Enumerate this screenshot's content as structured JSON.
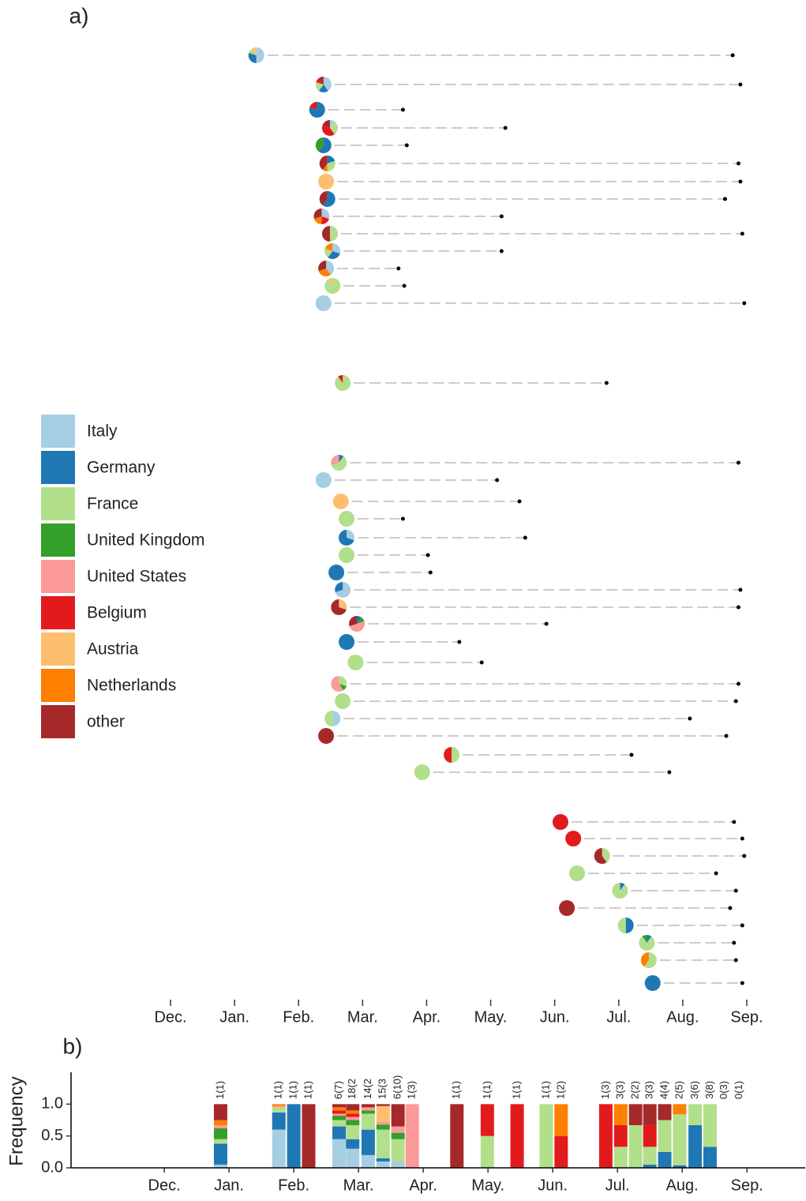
{
  "chart_data": [
    {
      "type": "phylogeny",
      "panel": "a)",
      "series": [
        {
          "name": "Italy",
          "color": "#a6cee3"
        },
        {
          "name": "Germany",
          "color": "#1f78b4"
        },
        {
          "name": "France",
          "color": "#b2df8a"
        },
        {
          "name": "United Kingdom",
          "color": "#33a02c"
        },
        {
          "name": "United States",
          "color": "#fb9a99"
        },
        {
          "name": "Belgium",
          "color": "#e31a1c"
        },
        {
          "name": "Austria",
          "color": "#fdbf6f"
        },
        {
          "name": "Netherlands",
          "color": "#ff7f00"
        },
        {
          "name": "other",
          "color": "#a6292a"
        }
      ],
      "xlim": [
        0,
        9
      ],
      "xticks": [
        {
          "value": 0,
          "label": "Dec."
        },
        {
          "value": 1,
          "label": "Jan."
        },
        {
          "value": 2,
          "label": "Feb."
        },
        {
          "value": 3,
          "label": "Mar."
        },
        {
          "value": 4,
          "label": "Apr."
        },
        {
          "value": 5,
          "label": "May."
        },
        {
          "value": 6,
          "label": "Jun."
        },
        {
          "value": 7,
          "label": "Jul."
        },
        {
          "value": 8,
          "label": "Aug."
        },
        {
          "value": 9,
          "label": "Sep."
        }
      ],
      "clusters": [
        {
          "start": 1.34,
          "end": 8.78,
          "pie": [
            0.5,
            0.3,
            0.1,
            0,
            0,
            0,
            0.1,
            0,
            0
          ]
        },
        {
          "start": 2.39,
          "end": 8.9,
          "pie": [
            0.4,
            0.2,
            0.2,
            0,
            0,
            0.1,
            0,
            0,
            0.1
          ]
        },
        {
          "start": 2.29,
          "end": 3.63,
          "pie": [
            0,
            0.8,
            0,
            0,
            0,
            0.1,
            0,
            0,
            0.1
          ]
        },
        {
          "start": 2.49,
          "end": 5.23,
          "pie": [
            0.1,
            0,
            0.3,
            0,
            0,
            0.4,
            0,
            0,
            0.2
          ]
        },
        {
          "start": 2.39,
          "end": 3.69,
          "pie": [
            0,
            0.6,
            0,
            0.4,
            0,
            0,
            0,
            0,
            0
          ]
        },
        {
          "start": 2.45,
          "end": 8.87,
          "pie": [
            0,
            0.2,
            0.3,
            0,
            0,
            0,
            0,
            0.1,
            0.4
          ]
        },
        {
          "start": 2.43,
          "end": 8.9,
          "pie": [
            0,
            0,
            0,
            0,
            0,
            0,
            1,
            0,
            0
          ]
        },
        {
          "start": 2.45,
          "end": 8.66,
          "pie": [
            0,
            0.6,
            0,
            0,
            0,
            0,
            0,
            0,
            0.4
          ]
        },
        {
          "start": 2.36,
          "end": 5.17,
          "pie": [
            0.3,
            0,
            0,
            0,
            0,
            0.2,
            0,
            0.2,
            0.3
          ]
        },
        {
          "start": 2.49,
          "end": 8.93,
          "pie": [
            0,
            0,
            0.5,
            0,
            0,
            0,
            0,
            0,
            0.5
          ]
        },
        {
          "start": 2.53,
          "end": 5.17,
          "pie": [
            0.3,
            0.3,
            0.2,
            0,
            0,
            0,
            0,
            0.2,
            0
          ]
        },
        {
          "start": 2.43,
          "end": 3.56,
          "pie": [
            0.4,
            0,
            0,
            0,
            0,
            0,
            0,
            0.3,
            0.3
          ]
        },
        {
          "start": 2.53,
          "end": 3.65,
          "pie": [
            0,
            0,
            0.9,
            0,
            0,
            0,
            0.1,
            0,
            0
          ]
        },
        {
          "start": 2.39,
          "end": 8.96,
          "pie": [
            1,
            0,
            0,
            0,
            0,
            0,
            0,
            0,
            0
          ]
        },
        {
          "start": 2.69,
          "end": 6.81,
          "pie": [
            0,
            0,
            0.9,
            0,
            0,
            0.1,
            0,
            0,
            0
          ]
        },
        {
          "start": 2.63,
          "end": 8.87,
          "pie": [
            0,
            0.1,
            0.6,
            0,
            0.3,
            0,
            0,
            0,
            0
          ]
        },
        {
          "start": 2.39,
          "end": 5.1,
          "pie": [
            1,
            0,
            0,
            0,
            0,
            0,
            0,
            0,
            0
          ]
        },
        {
          "start": 2.66,
          "end": 5.45,
          "pie": [
            0,
            0,
            0,
            0,
            0,
            0,
            1,
            0,
            0
          ]
        },
        {
          "start": 2.75,
          "end": 3.63,
          "pie": [
            0,
            0,
            1,
            0,
            0,
            0,
            0,
            0,
            0
          ]
        },
        {
          "start": 2.75,
          "end": 5.54,
          "pie": [
            0.3,
            0.7,
            0,
            0,
            0,
            0,
            0,
            0,
            0
          ]
        },
        {
          "start": 2.75,
          "end": 4.02,
          "pie": [
            0,
            0,
            1,
            0,
            0,
            0,
            0,
            0,
            0
          ]
        },
        {
          "start": 2.59,
          "end": 4.06,
          "pie": [
            0,
            1,
            0,
            0,
            0,
            0,
            0,
            0,
            0
          ]
        },
        {
          "start": 2.69,
          "end": 8.9,
          "pie": [
            0.7,
            0.3,
            0,
            0,
            0,
            0,
            0,
            0,
            0
          ]
        },
        {
          "start": 2.63,
          "end": 8.87,
          "pie": [
            0,
            0,
            0,
            0,
            0,
            0,
            0.3,
            0,
            0.7
          ]
        },
        {
          "start": 2.91,
          "end": 5.87,
          "pie": [
            0,
            0.1,
            0,
            0.1,
            0.5,
            0,
            0,
            0,
            0.3
          ]
        },
        {
          "start": 2.75,
          "end": 4.51,
          "pie": [
            0,
            1,
            0,
            0,
            0,
            0,
            0,
            0,
            0
          ]
        },
        {
          "start": 2.89,
          "end": 4.86,
          "pie": [
            0,
            0,
            1,
            0,
            0,
            0,
            0,
            0,
            0
          ]
        },
        {
          "start": 2.63,
          "end": 8.87,
          "pie": [
            0,
            0,
            0.3,
            0.1,
            0.6,
            0,
            0,
            0,
            0
          ]
        },
        {
          "start": 2.69,
          "end": 8.83,
          "pie": [
            0,
            0,
            1,
            0,
            0,
            0,
            0,
            0,
            0
          ]
        },
        {
          "start": 2.53,
          "end": 8.11,
          "pie": [
            0.5,
            0,
            0.5,
            0,
            0,
            0,
            0,
            0,
            0
          ]
        },
        {
          "start": 2.43,
          "end": 8.68,
          "pie": [
            0,
            0,
            0,
            0,
            0,
            0,
            0,
            0,
            1
          ]
        },
        {
          "start": 4.39,
          "end": 7.2,
          "pie": [
            0,
            0,
            0.5,
            0,
            0,
            0.5,
            0,
            0,
            0
          ]
        },
        {
          "start": 3.93,
          "end": 7.79,
          "pie": [
            0,
            0,
            1,
            0,
            0,
            0,
            0,
            0,
            0
          ]
        },
        {
          "start": 6.09,
          "end": 8.8,
          "pie": [
            0,
            0,
            0,
            0,
            0,
            1,
            0,
            0,
            0
          ]
        },
        {
          "start": 6.29,
          "end": 8.93,
          "pie": [
            0,
            0,
            0,
            0,
            0,
            1,
            0,
            0,
            0
          ]
        },
        {
          "start": 6.74,
          "end": 8.96,
          "pie": [
            0,
            0,
            0.4,
            0,
            0,
            0,
            0,
            0,
            0.6
          ]
        },
        {
          "start": 6.35,
          "end": 8.52,
          "pie": [
            0,
            0,
            1,
            0,
            0,
            0,
            0,
            0,
            0
          ]
        },
        {
          "start": 7.02,
          "end": 8.83,
          "pie": [
            0,
            0.1,
            0.9,
            0,
            0,
            0,
            0,
            0,
            0
          ]
        },
        {
          "start": 6.19,
          "end": 8.74,
          "pie": [
            0,
            0,
            0,
            0,
            0,
            0,
            0,
            0,
            1
          ]
        },
        {
          "start": 7.11,
          "end": 8.93,
          "pie": [
            0,
            0.5,
            0.5,
            0,
            0,
            0,
            0,
            0,
            0
          ]
        },
        {
          "start": 7.44,
          "end": 8.8,
          "pie": [
            0,
            0.1,
            0.8,
            0.1,
            0,
            0,
            0,
            0,
            0
          ]
        },
        {
          "start": 7.47,
          "end": 8.83,
          "pie": [
            0,
            0,
            0.6,
            0,
            0,
            0,
            0,
            0.4,
            0
          ]
        },
        {
          "start": 7.53,
          "end": 8.93,
          "pie": [
            0,
            1,
            0,
            0,
            0,
            0,
            0,
            0,
            0
          ]
        }
      ]
    },
    {
      "type": "bar",
      "stacked": true,
      "panel": "b)",
      "ylabel": "Frequency",
      "xlim": [
        -1.44,
        9.9
      ],
      "ylim": [
        0,
        1.5
      ],
      "yticks": [
        {
          "value": 0,
          "label": "0.0"
        },
        {
          "value": 0.5,
          "label": "0.5"
        },
        {
          "value": 1,
          "label": "1.0"
        }
      ],
      "xticks": [
        {
          "value": 0,
          "label": "Dec."
        },
        {
          "value": 1,
          "label": "Jan."
        },
        {
          "value": 2,
          "label": "Feb."
        },
        {
          "value": 3,
          "label": "Mar."
        },
        {
          "value": 4,
          "label": "Apr."
        },
        {
          "value": 5,
          "label": "May."
        },
        {
          "value": 6,
          "label": "Jun."
        },
        {
          "value": 7,
          "label": "Jul."
        },
        {
          "value": 8,
          "label": "Aug."
        },
        {
          "value": 9,
          "label": "Sep."
        }
      ],
      "x": [
        0.87,
        1.77,
        2.0,
        2.23,
        2.7,
        2.91,
        3.15,
        3.38,
        3.61,
        3.83,
        4.52,
        4.99,
        5.45,
        5.9,
        6.13,
        6.82,
        7.05,
        7.28,
        7.5,
        7.73,
        7.96,
        8.2,
        8.43,
        8.65,
        8.88
      ],
      "annotations": [
        "1(1)",
        "1(1)",
        "1(1)",
        "1(1)",
        "6(7)",
        "18(2",
        "14(2",
        "15(3",
        "6(10)",
        "1(3)",
        "1(1)",
        "1(1)",
        "1(1)",
        "1(1)",
        "1(2)",
        "1(3)",
        "3(3)",
        "2(2)",
        "3(3)",
        "4(4)",
        "2(5)",
        "3(6)",
        "3(8)",
        "0(3)",
        "0(1)"
      ],
      "series": [
        {
          "color": "#a6cee3",
          "values": [
            0.05,
            0.6,
            0,
            0,
            0.45,
            0.3,
            0.2,
            0.1,
            0.1,
            0,
            0,
            0,
            0,
            0,
            0,
            0,
            0,
            0,
            0,
            0,
            0,
            0,
            0,
            0,
            0
          ]
        },
        {
          "color": "#1f78b4",
          "values": [
            0.33,
            0.27,
            1,
            0,
            0.2,
            0.15,
            0.4,
            0.05,
            0,
            0,
            0,
            0,
            0,
            0,
            0,
            0,
            0,
            0,
            0.05,
            0.25,
            0.04,
            0.67,
            0.33,
            0,
            0
          ]
        },
        {
          "color": "#b2df8a",
          "values": [
            0.07,
            0.08,
            0,
            0,
            0.1,
            0.22,
            0.25,
            0.45,
            0.35,
            0,
            0,
            0.5,
            0,
            1,
            0,
            0,
            0.33,
            0.67,
            0.28,
            0.5,
            0.8,
            0.33,
            0.67,
            0,
            0
          ]
        },
        {
          "color": "#33a02c",
          "values": [
            0.17,
            0,
            0,
            0,
            0.07,
            0.08,
            0.05,
            0.08,
            0.1,
            0,
            0,
            0,
            0,
            0,
            0,
            0,
            0,
            0,
            0,
            0,
            0,
            0,
            0,
            0,
            0
          ]
        },
        {
          "color": "#fb9a99",
          "values": [
            0.05,
            0.02,
            0,
            0,
            0.03,
            0.05,
            0.05,
            0.04,
            0.1,
            1,
            0,
            0,
            0,
            0,
            0,
            0,
            0,
            0,
            0,
            0,
            0,
            0,
            0,
            0,
            0
          ]
        },
        {
          "color": "#e31a1c",
          "values": [
            0,
            0,
            0,
            0,
            0.05,
            0.05,
            0,
            0,
            0,
            0,
            0,
            0.5,
            1,
            0,
            0.5,
            1,
            0.34,
            0,
            0.34,
            0,
            0,
            0,
            0,
            0,
            0
          ]
        },
        {
          "color": "#fdbf6f",
          "values": [
            0,
            0,
            0,
            0,
            0,
            0,
            0,
            0.25,
            0,
            0,
            0,
            0,
            0,
            0,
            0,
            0,
            0,
            0,
            0,
            0,
            0,
            0,
            0,
            0,
            0
          ]
        },
        {
          "color": "#ff7f00",
          "values": [
            0.08,
            0.03,
            0,
            0,
            0.05,
            0.05,
            0,
            0,
            0,
            0,
            0,
            0,
            0,
            0,
            0.5,
            0,
            0.33,
            0,
            0,
            0,
            0.16,
            0,
            0,
            0,
            0
          ]
        },
        {
          "color": "#a6292a",
          "values": [
            0.25,
            0,
            0,
            1,
            0.05,
            0.1,
            0.05,
            0.03,
            0.35,
            0,
            1,
            0,
            0,
            0,
            0,
            0,
            0,
            0.33,
            0.33,
            0.25,
            0,
            0,
            0,
            0,
            0
          ]
        }
      ]
    }
  ]
}
